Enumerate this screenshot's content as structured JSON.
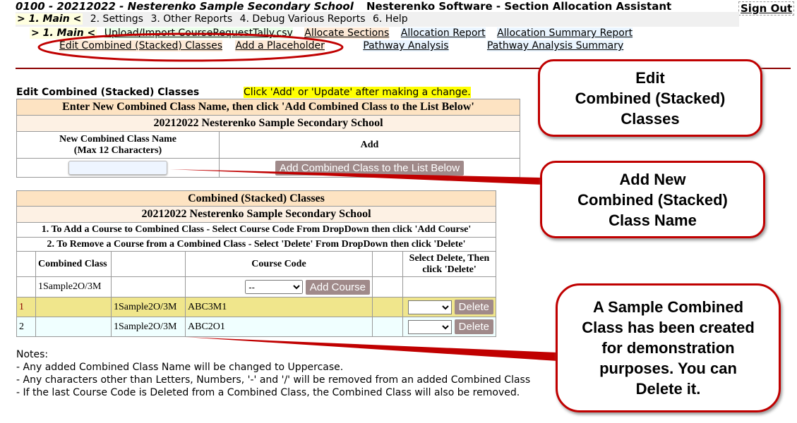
{
  "header": {
    "title": "0100 - 20212022 - Nesterenko Sample Secondary School",
    "app_name": "Nesterenko Software - Section Allocation Assistant",
    "sign_out": "Sign Out"
  },
  "menu": {
    "items": [
      "> 1. Main <",
      "2. Settings",
      "3. Other Reports",
      "4. Debug Various Reports",
      "6. Help"
    ]
  },
  "submenu": {
    "current": "> 1. Main <",
    "row1": [
      "Upload/Import CourseRequestTally.csv",
      "Allocate Sections",
      "Allocation Report",
      "Allocation Summary Report"
    ],
    "row2": [
      "Edit Combined (Stacked) Classes",
      "Add a Placeholder",
      "Pathway Analysis",
      "Pathway Analysis Summary"
    ]
  },
  "page": {
    "heading": "Edit Combined (Stacked) Classes",
    "hint": "Click 'Add' or 'Update' after making a change."
  },
  "add_table": {
    "header": "Enter New Combined Class Name, then click 'Add Combined Class to the List Below'",
    "school": "20212022 Nesterenko Sample Secondary School",
    "col_name": "New Combined Class Name",
    "col_name_sub": "(Max 12 Characters)",
    "col_add": "Add",
    "input_value": "",
    "add_button": "Add Combined Class to the List Below"
  },
  "list_table": {
    "header": "Combined (Stacked) Classes",
    "school": "20212022 Nesterenko Sample Secondary School",
    "instr1": "1. To Add a Course to Combined Class - Select Course Code From DropDown then click 'Add Course'",
    "instr2": "2. To Remove a Course from a Combined Class - Select 'Delete' From DropDown then click 'Delete'",
    "col_combined": "Combined Class",
    "col_course": "Course Code",
    "col_delete": "Select Delete, Then click 'Delete'",
    "group": {
      "name": "1Sample2O/3M",
      "select_value": "--",
      "add_course": "Add Course"
    },
    "rows": [
      {
        "num": "1",
        "class": "1Sample2O/3M",
        "course": "ABC3M1",
        "delete": "Delete",
        "bg": "#f0e68c"
      },
      {
        "num": "2",
        "class": "1Sample2O/3M",
        "course": "ABC2O1",
        "delete": "Delete",
        "bg": "#f0ffff"
      }
    ]
  },
  "notes": {
    "title": "Notes:",
    "lines": [
      "- Any added Combined Class Name will be changed to Uppercase.",
      "- Any characters other than Letters, Numbers, '-' and '/' will be removed from an added Combined Class",
      "- If the last Course Code is Deleted from a Combined Class, the Combined Class will also be removed."
    ]
  },
  "callouts": {
    "c1": [
      "Edit",
      "Combined (Stacked)",
      "Classes"
    ],
    "c2": [
      "Add New",
      "Combined (Stacked)",
      "Class Name"
    ],
    "c3": [
      "A Sample Combined",
      "Class has been created",
      "for demonstration",
      "purposes.  You can",
      "Delete it."
    ]
  },
  "colors": {
    "annotation": "#c00000",
    "header_bg": "#fde3c2",
    "row1_bg": "#f0e68c",
    "row2_bg": "#f0ffff",
    "button": "#a08a8a"
  }
}
